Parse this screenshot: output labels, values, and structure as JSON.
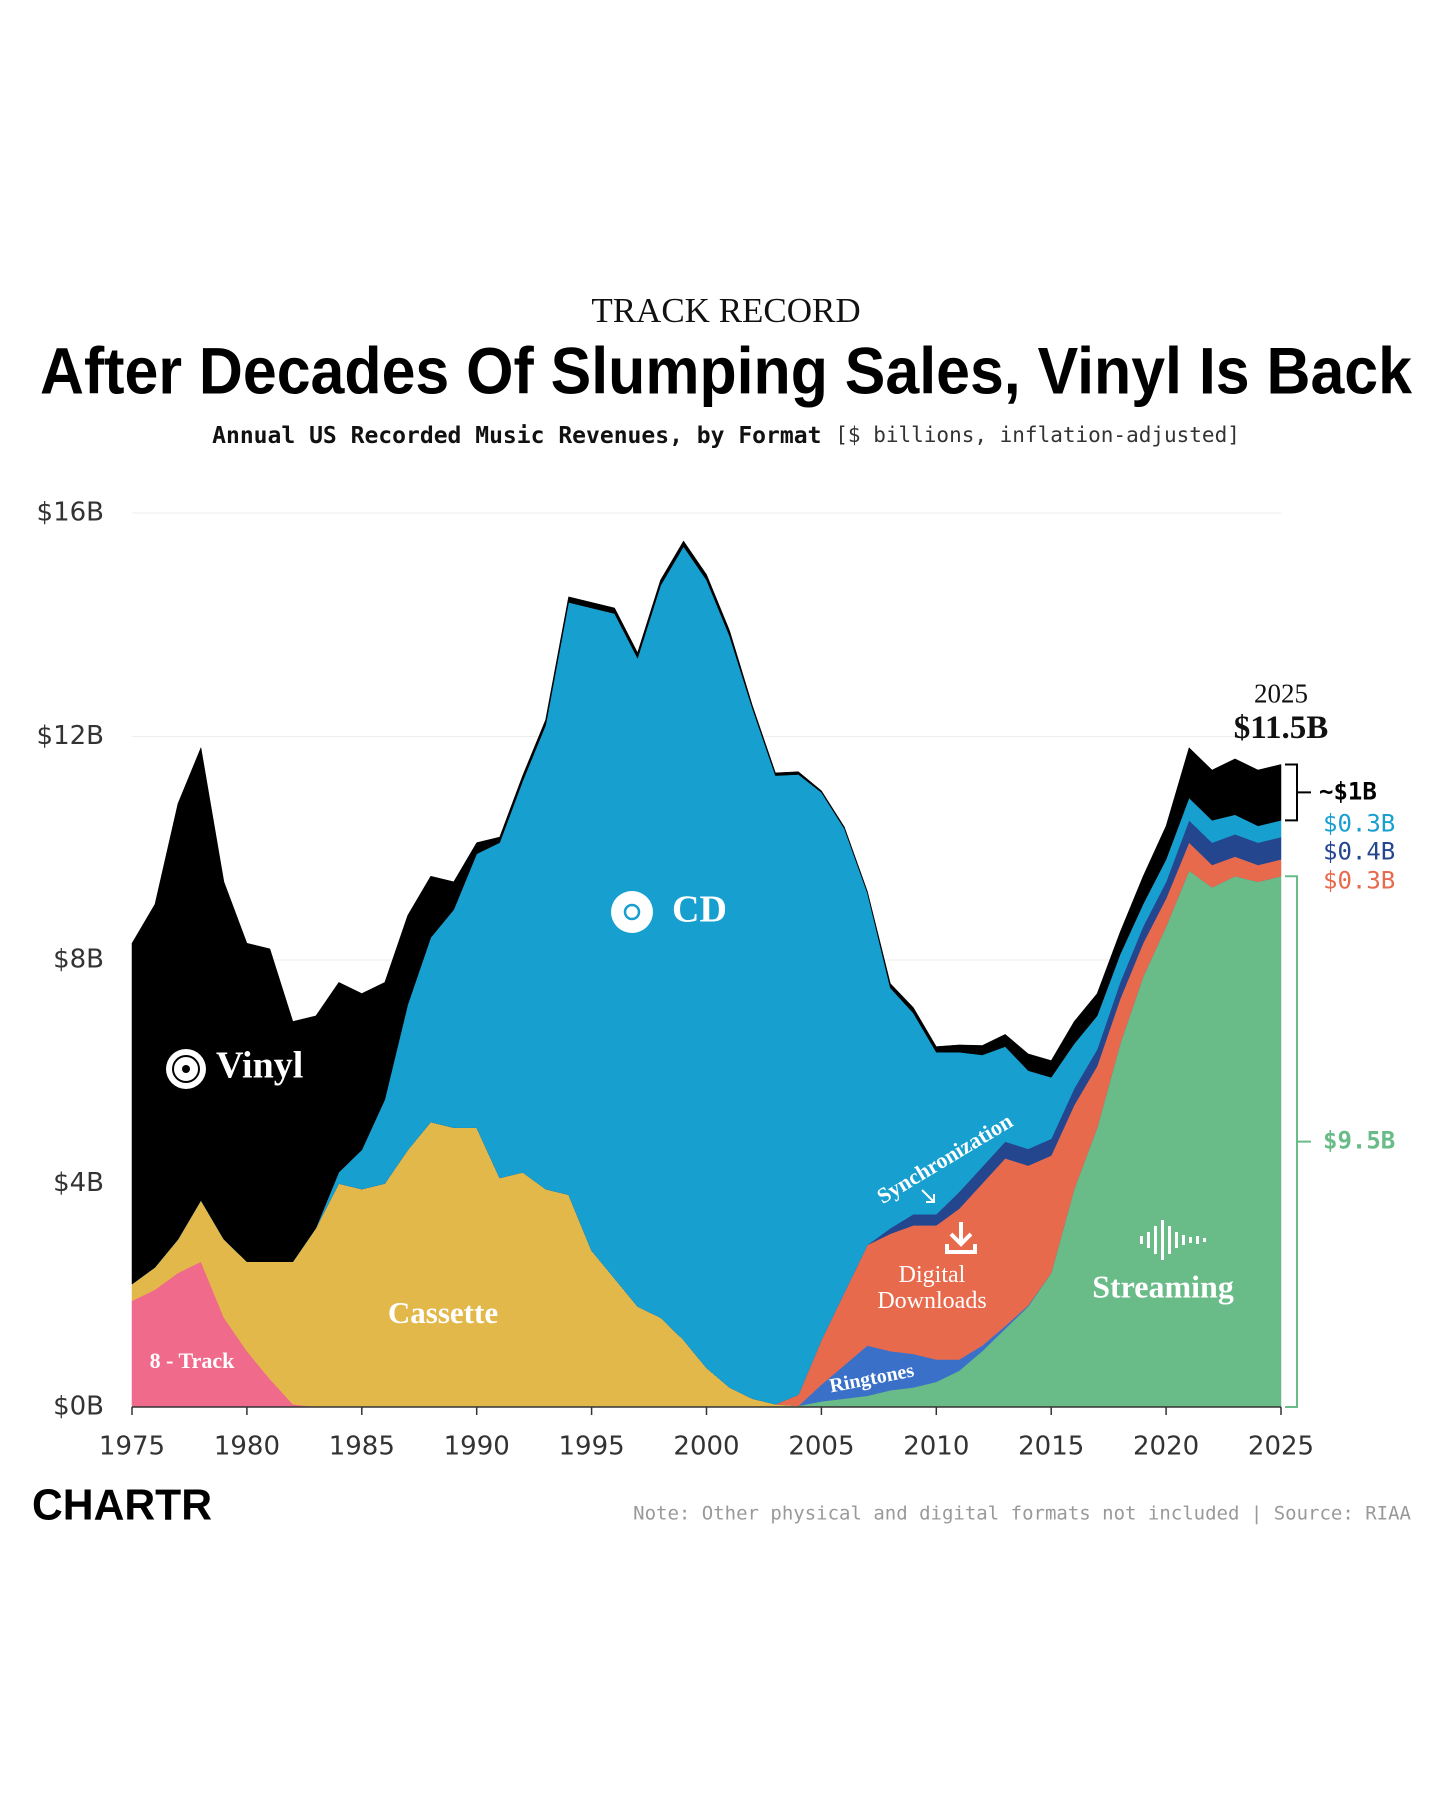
{
  "chart_data": {
    "type": "stacked_area",
    "kicker": "TRACK RECORD",
    "title": "After Decades Of Slumping Sales, Vinyl Is Back",
    "subtitle": "Annual US Recorded Music Revenues, by Format",
    "subtitle_units": "[$ billions, inflation-adjusted]",
    "note": "Note: Other physical and digital formats not included | Source: RIAA",
    "logo": "CHARTR",
    "x": [
      1975,
      1976,
      1977,
      1978,
      1979,
      1980,
      1981,
      1982,
      1983,
      1984,
      1985,
      1986,
      1987,
      1988,
      1989,
      1990,
      1991,
      1992,
      1993,
      1994,
      1995,
      1996,
      1997,
      1998,
      1999,
      2000,
      2001,
      2002,
      2003,
      2004,
      2005,
      2006,
      2007,
      2008,
      2009,
      2010,
      2011,
      2012,
      2013,
      2014,
      2015,
      2016,
      2017,
      2018,
      2019,
      2020,
      2021,
      2022,
      2023,
      2024,
      2025
    ],
    "series": [
      {
        "name": "8 - Track",
        "color": "#f06b8b",
        "values": [
          1.9,
          2.1,
          2.4,
          2.6,
          1.6,
          1.0,
          0.5,
          0.05,
          0,
          0,
          0,
          0,
          0,
          0,
          0,
          0,
          0,
          0,
          0,
          0,
          0,
          0,
          0,
          0,
          0,
          0,
          0,
          0,
          0,
          0,
          0,
          0,
          0,
          0,
          0,
          0,
          0,
          0,
          0,
          0,
          0,
          0,
          0,
          0,
          0,
          0,
          0,
          0,
          0,
          0,
          0
        ]
      },
      {
        "name": "Cassette",
        "color": "#e2b84a",
        "values": [
          0.3,
          0.4,
          0.6,
          1.1,
          1.4,
          1.6,
          2.1,
          2.55,
          3.2,
          4.0,
          3.9,
          4.0,
          4.6,
          5.1,
          5.0,
          5.0,
          4.1,
          4.2,
          3.9,
          3.8,
          2.8,
          2.3,
          1.8,
          1.6,
          1.2,
          0.7,
          0.35,
          0.15,
          0.05,
          0.02,
          0,
          0,
          0,
          0,
          0,
          0,
          0,
          0,
          0,
          0,
          0,
          0,
          0,
          0,
          0,
          0,
          0,
          0,
          0,
          0,
          0
        ]
      },
      {
        "name": "Streaming",
        "color": "#69bb88",
        "values": [
          0,
          0,
          0,
          0,
          0,
          0,
          0,
          0,
          0,
          0,
          0,
          0,
          0,
          0,
          0,
          0,
          0,
          0,
          0,
          0,
          0,
          0,
          0,
          0,
          0,
          0,
          0,
          0,
          0,
          0,
          0.1,
          0.15,
          0.2,
          0.3,
          0.35,
          0.45,
          0.65,
          1.0,
          1.4,
          1.8,
          2.4,
          3.9,
          5.0,
          6.5,
          7.7,
          8.6,
          9.6,
          9.3,
          9.5,
          9.4,
          9.5
        ]
      },
      {
        "name": "Ringtones",
        "color": "#3a70c8",
        "values": [
          0,
          0,
          0,
          0,
          0,
          0,
          0,
          0,
          0,
          0,
          0,
          0,
          0,
          0,
          0,
          0,
          0,
          0,
          0,
          0,
          0,
          0,
          0,
          0,
          0,
          0,
          0,
          0,
          0,
          0,
          0.3,
          0.6,
          0.9,
          0.7,
          0.6,
          0.4,
          0.2,
          0.1,
          0.05,
          0.02,
          0,
          0,
          0,
          0,
          0,
          0,
          0,
          0,
          0,
          0,
          0
        ]
      },
      {
        "name": "Digital Downloads",
        "color": "#e86a4d",
        "values": [
          0,
          0,
          0,
          0,
          0,
          0,
          0,
          0,
          0,
          0,
          0,
          0,
          0,
          0,
          0,
          0,
          0,
          0,
          0,
          0,
          0,
          0,
          0,
          0,
          0,
          0,
          0,
          0,
          0,
          0.2,
          0.8,
          1.3,
          1.8,
          2.1,
          2.3,
          2.4,
          2.7,
          2.9,
          3.0,
          2.5,
          2.1,
          1.5,
          1.1,
          0.8,
          0.6,
          0.5,
          0.5,
          0.4,
          0.35,
          0.3,
          0.3
        ]
      },
      {
        "name": "Synchronization",
        "color": "#24468f",
        "values": [
          0,
          0,
          0,
          0,
          0,
          0,
          0,
          0,
          0,
          0,
          0,
          0,
          0,
          0,
          0,
          0,
          0,
          0,
          0,
          0,
          0,
          0,
          0,
          0,
          0,
          0,
          0,
          0,
          0,
          0,
          0,
          0,
          0,
          0.1,
          0.2,
          0.2,
          0.3,
          0.3,
          0.3,
          0.3,
          0.3,
          0.3,
          0.3,
          0.3,
          0.3,
          0.3,
          0.4,
          0.4,
          0.4,
          0.4,
          0.4
        ]
      },
      {
        "name": "CD",
        "color": "#17a0cf",
        "values": [
          0,
          0,
          0,
          0,
          0,
          0,
          0,
          0,
          0,
          0.2,
          0.7,
          1.5,
          2.6,
          3.3,
          3.9,
          4.9,
          6.0,
          7.0,
          8.3,
          10.6,
          11.5,
          11.9,
          11.6,
          13.1,
          14.2,
          14.1,
          13.45,
          12.35,
          11.25,
          11.1,
          9.8,
          8.3,
          6.3,
          4.3,
          3.6,
          2.9,
          2.5,
          2.0,
          1.7,
          1.4,
          1.1,
          0.8,
          0.6,
          0.5,
          0.4,
          0.4,
          0.4,
          0.4,
          0.35,
          0.3,
          0.3
        ]
      },
      {
        "name": "Vinyl",
        "color": "#000000",
        "values": [
          6.1,
          6.5,
          7.8,
          8.1,
          6.4,
          5.7,
          5.6,
          4.3,
          3.8,
          3.4,
          2.8,
          2.1,
          1.6,
          1.1,
          0.5,
          0.2,
          0.1,
          0.1,
          0.1,
          0.1,
          0.1,
          0.1,
          0.1,
          0.1,
          0.1,
          0.1,
          0.1,
          0.05,
          0.05,
          0.05,
          0.03,
          0.03,
          0.03,
          0.08,
          0.1,
          0.1,
          0.13,
          0.17,
          0.22,
          0.3,
          0.3,
          0.4,
          0.4,
          0.4,
          0.5,
          0.6,
          0.9,
          0.9,
          1.0,
          1.0,
          1.0
        ]
      }
    ],
    "xlim": [
      1975,
      2025
    ],
    "ylim": [
      0,
      16
    ],
    "xticks": [
      1975,
      1980,
      1985,
      1990,
      1995,
      2000,
      2005,
      2010,
      2015,
      2020,
      2025
    ],
    "yticks": [
      {
        "value": 0,
        "label": "$0B"
      },
      {
        "value": 4,
        "label": "$4B"
      },
      {
        "value": 8,
        "label": "$8B"
      },
      {
        "value": 12,
        "label": "$12B"
      },
      {
        "value": 16,
        "label": "$16B"
      }
    ],
    "grid": true,
    "annotations": {
      "year": "2025",
      "total": "$11.5B",
      "vinyl": "~$1B",
      "cd": "$0.3B",
      "sync": "$0.4B",
      "downloads": "$0.3B",
      "streaming": "$9.5B"
    }
  }
}
